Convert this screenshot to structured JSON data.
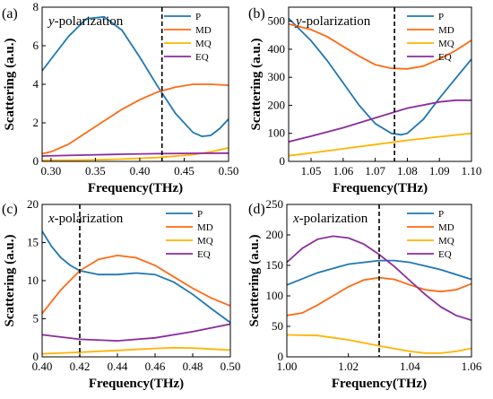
{
  "chart_data": [
    {
      "type": "line",
      "panel_label": "(a)",
      "annotation": "-polarization",
      "annotation_var": "y",
      "xlabel": "Frequency(THz)",
      "ylabel": "Scattering (a.u.)",
      "xlim": [
        0.29,
        0.5
      ],
      "ylim": [
        0,
        8
      ],
      "xticks": [
        0.3,
        0.35,
        0.4,
        0.45,
        0.5
      ],
      "xtick_labels": [
        "0.30",
        "0.35",
        "0.40",
        "0.45",
        "0.50"
      ],
      "yticks": [
        0,
        2,
        4,
        6,
        8
      ],
      "ytick_labels": [
        "0",
        "2",
        "4",
        "6",
        "8"
      ],
      "vline": 0.425,
      "legend_position": "top-right",
      "series": [
        {
          "name": "P",
          "color": "#1f77b4",
          "x": [
            0.29,
            0.3,
            0.32,
            0.34,
            0.36,
            0.38,
            0.4,
            0.42,
            0.44,
            0.46,
            0.47,
            0.48,
            0.49,
            0.5
          ],
          "y": [
            4.7,
            5.3,
            6.5,
            7.4,
            7.5,
            6.8,
            5.4,
            3.9,
            2.5,
            1.5,
            1.3,
            1.35,
            1.7,
            2.2
          ]
        },
        {
          "name": "MD",
          "color": "#ff6a13",
          "x": [
            0.29,
            0.3,
            0.32,
            0.34,
            0.36,
            0.38,
            0.4,
            0.42,
            0.44,
            0.46,
            0.48,
            0.5
          ],
          "y": [
            0.4,
            0.5,
            0.9,
            1.5,
            2.1,
            2.7,
            3.2,
            3.6,
            3.85,
            4.0,
            4.0,
            3.95
          ]
        },
        {
          "name": "MQ",
          "color": "#ffb400",
          "x": [
            0.29,
            0.34,
            0.38,
            0.42,
            0.46,
            0.48,
            0.5
          ],
          "y": [
            0.05,
            0.07,
            0.12,
            0.2,
            0.35,
            0.5,
            0.7
          ]
        },
        {
          "name": "EQ",
          "color": "#8b2c9e",
          "x": [
            0.29,
            0.34,
            0.38,
            0.42,
            0.46,
            0.5
          ],
          "y": [
            0.28,
            0.33,
            0.37,
            0.4,
            0.42,
            0.43
          ]
        }
      ]
    },
    {
      "type": "line",
      "panel_label": "(b)",
      "annotation": "-polarization",
      "annotation_var": "y",
      "xlabel": "Frequency(THz)",
      "ylabel": "Scattering (a.u.)",
      "xlim": [
        1.043,
        1.1
      ],
      "ylim": [
        0,
        550
      ],
      "xticks": [
        1.05,
        1.06,
        1.07,
        1.08,
        1.09,
        1.1
      ],
      "xtick_labels": [
        "1.05",
        "1.06",
        "1.07",
        "1.08",
        "1.09",
        "1.10"
      ],
      "yticks": [
        0,
        100,
        200,
        300,
        400,
        500
      ],
      "ytick_labels": [
        "0",
        "100",
        "200",
        "300",
        "400",
        "500"
      ],
      "vline": 1.076,
      "legend_position": "top-right",
      "series": [
        {
          "name": "P",
          "color": "#1f77b4",
          "x": [
            1.043,
            1.05,
            1.055,
            1.06,
            1.065,
            1.07,
            1.075,
            1.078,
            1.08,
            1.085,
            1.09,
            1.095,
            1.1
          ],
          "y": [
            510,
            430,
            360,
            280,
            200,
            135,
            100,
            95,
            100,
            150,
            225,
            295,
            365
          ]
        },
        {
          "name": "MD",
          "color": "#ff6a13",
          "x": [
            1.043,
            1.05,
            1.055,
            1.06,
            1.065,
            1.07,
            1.075,
            1.08,
            1.085,
            1.09,
            1.095,
            1.1
          ],
          "y": [
            490,
            470,
            445,
            410,
            375,
            345,
            332,
            330,
            340,
            365,
            395,
            432
          ]
        },
        {
          "name": "MQ",
          "color": "#ffb400",
          "x": [
            1.043,
            1.05,
            1.06,
            1.07,
            1.08,
            1.09,
            1.1
          ],
          "y": [
            20,
            30,
            45,
            60,
            75,
            88,
            100
          ]
        },
        {
          "name": "EQ",
          "color": "#8b2c9e",
          "x": [
            1.043,
            1.05,
            1.06,
            1.07,
            1.08,
            1.09,
            1.095,
            1.1
          ],
          "y": [
            70,
            90,
            120,
            155,
            190,
            212,
            218,
            218
          ]
        }
      ]
    },
    {
      "type": "line",
      "panel_label": "(c)",
      "annotation": "-polarization",
      "annotation_var": "x",
      "xlabel": "Frequency(THz)",
      "ylabel": "Scattering (a.u.)",
      "xlim": [
        0.4,
        0.5
      ],
      "ylim": [
        0,
        20
      ],
      "xticks": [
        0.4,
        0.42,
        0.44,
        0.46,
        0.48,
        0.5
      ],
      "xtick_labels": [
        "0.40",
        "0.42",
        "0.44",
        "0.46",
        "0.48",
        "0.50"
      ],
      "yticks": [
        0,
        5,
        10,
        15,
        20
      ],
      "ytick_labels": [
        "0",
        "5",
        "10",
        "15",
        "20"
      ],
      "vline": 0.42,
      "legend_position": "top-right",
      "series": [
        {
          "name": "P",
          "color": "#1f77b4",
          "x": [
            0.4,
            0.405,
            0.41,
            0.415,
            0.42,
            0.43,
            0.44,
            0.45,
            0.46,
            0.47,
            0.48,
            0.49,
            0.5
          ],
          "y": [
            16.5,
            14.5,
            13.0,
            12.0,
            11.3,
            10.8,
            10.8,
            11.0,
            10.8,
            9.8,
            8.2,
            6.3,
            4.5
          ]
        },
        {
          "name": "MD",
          "color": "#ff6a13",
          "x": [
            0.4,
            0.41,
            0.42,
            0.43,
            0.44,
            0.45,
            0.46,
            0.47,
            0.48,
            0.49,
            0.5
          ],
          "y": [
            5.7,
            8.8,
            11.3,
            12.8,
            13.3,
            13.0,
            12.0,
            10.5,
            9.0,
            7.7,
            6.7
          ]
        },
        {
          "name": "MQ",
          "color": "#ffb400",
          "x": [
            0.4,
            0.42,
            0.44,
            0.46,
            0.47,
            0.48,
            0.5
          ],
          "y": [
            0.4,
            0.6,
            0.85,
            1.1,
            1.2,
            1.15,
            0.9
          ]
        },
        {
          "name": "EQ",
          "color": "#8b2c9e",
          "x": [
            0.4,
            0.42,
            0.44,
            0.46,
            0.48,
            0.5
          ],
          "y": [
            2.9,
            2.3,
            2.1,
            2.5,
            3.3,
            4.3
          ]
        }
      ]
    },
    {
      "type": "line",
      "panel_label": "(d)",
      "annotation": "-polarization",
      "annotation_var": "x",
      "xlabel": "Frequency(THz)",
      "ylabel": "Scattering (a.u.)",
      "xlim": [
        1.0,
        1.06
      ],
      "ylim": [
        0,
        250
      ],
      "xticks": [
        1.0,
        1.02,
        1.04,
        1.06
      ],
      "xtick_labels": [
        "1.00",
        "1.02",
        "1.04",
        "1.06"
      ],
      "yticks": [
        0,
        50,
        100,
        150,
        200,
        250
      ],
      "ytick_labels": [
        "0",
        "50",
        "100",
        "150",
        "200",
        "250"
      ],
      "vline": 1.03,
      "legend_position": "top-right",
      "series": [
        {
          "name": "P",
          "color": "#1f77b4",
          "x": [
            1.0,
            1.01,
            1.02,
            1.03,
            1.035,
            1.04,
            1.05,
            1.06
          ],
          "y": [
            118,
            138,
            152,
            158,
            158,
            155,
            143,
            127
          ]
        },
        {
          "name": "MD",
          "color": "#ff6a13",
          "x": [
            1.0,
            1.005,
            1.01,
            1.015,
            1.02,
            1.025,
            1.03,
            1.035,
            1.04,
            1.045,
            1.05,
            1.055,
            1.06
          ],
          "y": [
            68,
            72,
            85,
            100,
            115,
            126,
            130,
            127,
            118,
            110,
            107,
            110,
            120
          ]
        },
        {
          "name": "MQ",
          "color": "#ffb400",
          "x": [
            1.0,
            1.01,
            1.02,
            1.03,
            1.04,
            1.045,
            1.05,
            1.055,
            1.06
          ],
          "y": [
            36,
            35,
            28,
            18,
            9,
            6,
            6,
            9,
            14
          ]
        },
        {
          "name": "EQ",
          "color": "#8b2c9e",
          "x": [
            1.0,
            1.005,
            1.01,
            1.015,
            1.02,
            1.025,
            1.03,
            1.035,
            1.04,
            1.045,
            1.05,
            1.055,
            1.06
          ],
          "y": [
            155,
            178,
            193,
            198,
            195,
            185,
            168,
            148,
            125,
            102,
            82,
            68,
            60
          ]
        }
      ]
    }
  ]
}
